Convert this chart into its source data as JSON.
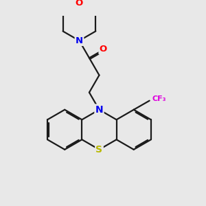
{
  "background_color": "#e8e8e8",
  "bond_color": "#1a1a1a",
  "bond_width": 1.6,
  "atom_colors": {
    "N": "#0000ee",
    "O": "#ff0000",
    "S": "#b8b800",
    "F": "#dd00dd"
  },
  "figsize": [
    3.0,
    3.0
  ],
  "dpi": 100,
  "scale": 10.0
}
